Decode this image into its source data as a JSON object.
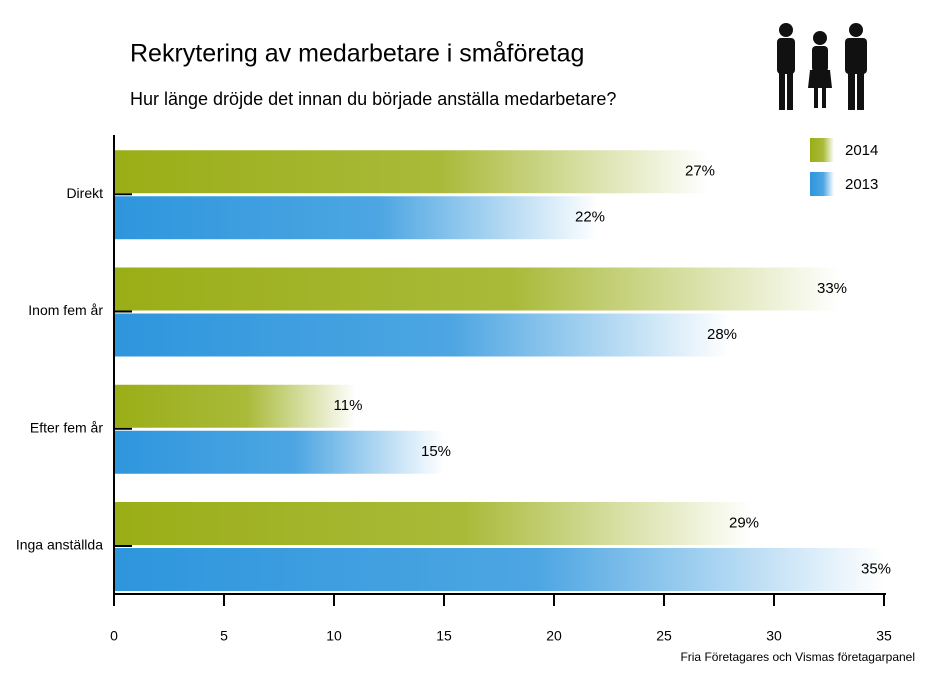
{
  "chart_data": {
    "type": "barh",
    "title": "Rekrytering av medarbetare i småföretag",
    "subtitle": "Hur länge dröjde det innan du började anställa medarbetare?",
    "source": "Fria Företagares och Vismas företagarpanel",
    "categories": [
      "Direkt",
      "Inom fem år",
      "Efter fem år",
      "Inga anställda"
    ],
    "series": [
      {
        "name": "2014",
        "color": "#9aae17",
        "values": [
          27,
          33,
          11,
          29
        ],
        "value_labels": [
          "27%",
          "33%",
          "11%",
          "29%"
        ]
      },
      {
        "name": "2013",
        "color": "#2e96dd",
        "values": [
          22,
          28,
          15,
          35
        ],
        "value_labels": [
          "22%",
          "28%",
          "15%",
          "35%"
        ]
      }
    ],
    "xlim": [
      0,
      35
    ],
    "xticks": [
      0,
      5,
      10,
      15,
      20,
      25,
      30,
      35
    ],
    "legend": "top-right"
  }
}
